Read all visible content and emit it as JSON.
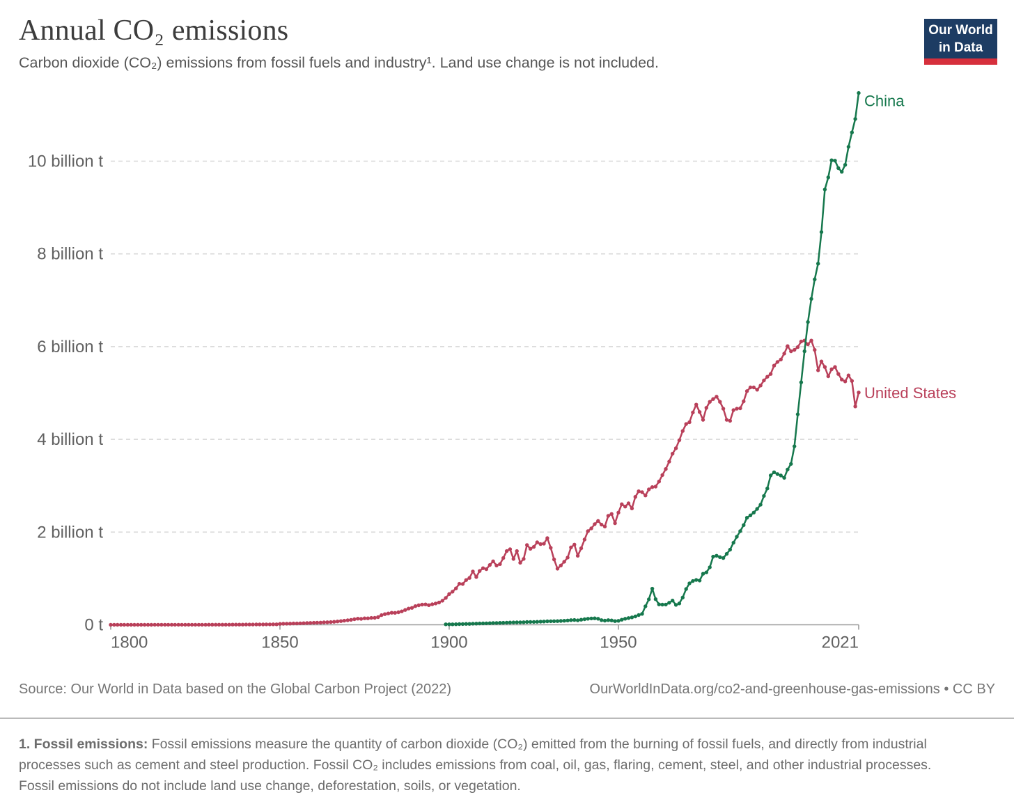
{
  "header": {
    "title": "Annual CO₂ emissions",
    "subtitle": "Carbon dioxide (CO₂) emissions from fossil fuels and industry¹. Land use change is not included.",
    "logo": {
      "line1": "Our World",
      "line2": "in Data"
    }
  },
  "chart_data": {
    "type": "line",
    "title": "Annual CO₂ emissions",
    "unit": "billion tonnes of CO₂ per year",
    "grid": true,
    "x_range": [
      1800,
      2021
    ],
    "y_range": [
      0,
      11.6
    ],
    "x_axis": {
      "ticks": [
        {
          "year": 1800,
          "label": "1800"
        },
        {
          "year": 1850,
          "label": "1850"
        },
        {
          "year": 1900,
          "label": "1900"
        },
        {
          "year": 1950,
          "label": "1950"
        },
        {
          "year": 2021,
          "label": "2021"
        }
      ]
    },
    "y_axis": {
      "ticks": [
        {
          "value": 0,
          "label": "0 t"
        },
        {
          "value": 2,
          "label": "2 billion t"
        },
        {
          "value": 4,
          "label": "4 billion t"
        },
        {
          "value": 6,
          "label": "6 billion t"
        },
        {
          "value": 8,
          "label": "8 billion t"
        },
        {
          "value": 10,
          "label": "10 billion t"
        }
      ]
    },
    "legend_position": "end-of-line-labels",
    "series": [
      {
        "name": "United States",
        "color": "#b9405a",
        "x_start": 1800,
        "x_step": 1,
        "values": [
          0.0003,
          0.0003,
          0.0003,
          0.0004,
          0.0004,
          0.0004,
          0.0005,
          0.0005,
          0.0005,
          0.0006,
          0.0006,
          0.0007,
          0.0007,
          0.0008,
          0.0008,
          0.0009,
          0.0009,
          0.001,
          0.001,
          0.0011,
          0.0012,
          0.0013,
          0.0014,
          0.0015,
          0.0016,
          0.0017,
          0.0018,
          0.002,
          0.0021,
          0.0023,
          0.0025,
          0.0027,
          0.0029,
          0.0031,
          0.0034,
          0.0037,
          0.004,
          0.0043,
          0.0046,
          0.005,
          0.0054,
          0.0059,
          0.0064,
          0.0069,
          0.0075,
          0.0081,
          0.0088,
          0.0095,
          0.0103,
          0.0112,
          0.0198,
          0.022,
          0.024,
          0.026,
          0.028,
          0.029,
          0.032,
          0.035,
          0.037,
          0.04,
          0.044,
          0.046,
          0.048,
          0.052,
          0.055,
          0.059,
          0.065,
          0.072,
          0.08,
          0.088,
          0.098,
          0.106,
          0.12,
          0.132,
          0.128,
          0.139,
          0.14,
          0.148,
          0.15,
          0.165,
          0.209,
          0.23,
          0.245,
          0.26,
          0.258,
          0.271,
          0.29,
          0.32,
          0.35,
          0.365,
          0.403,
          0.42,
          0.435,
          0.44,
          0.423,
          0.443,
          0.46,
          0.48,
          0.52,
          0.58,
          0.663,
          0.715,
          0.785,
          0.885,
          0.88,
          0.965,
          1.01,
          1.15,
          1.03,
          1.16,
          1.22,
          1.2,
          1.29,
          1.37,
          1.28,
          1.31,
          1.44,
          1.59,
          1.63,
          1.42,
          1.59,
          1.34,
          1.42,
          1.72,
          1.64,
          1.68,
          1.78,
          1.74,
          1.75,
          1.87,
          1.66,
          1.41,
          1.21,
          1.28,
          1.36,
          1.45,
          1.67,
          1.73,
          1.49,
          1.65,
          1.84,
          2.02,
          2.08,
          2.17,
          2.24,
          2.16,
          2.12,
          2.35,
          2.39,
          2.19,
          2.42,
          2.6,
          2.55,
          2.62,
          2.51,
          2.76,
          2.88,
          2.86,
          2.79,
          2.92,
          2.97,
          2.98,
          3.09,
          3.23,
          3.36,
          3.52,
          3.69,
          3.81,
          3.98,
          4.18,
          4.33,
          4.37,
          4.58,
          4.75,
          4.59,
          4.42,
          4.68,
          4.81,
          4.87,
          4.92,
          4.81,
          4.66,
          4.42,
          4.4,
          4.63,
          4.66,
          4.67,
          4.82,
          5.04,
          5.12,
          5.12,
          5.07,
          5.16,
          5.27,
          5.35,
          5.41,
          5.59,
          5.67,
          5.72,
          5.85,
          6.01,
          5.9,
          5.93,
          5.99,
          6.11,
          6.13,
          6.05,
          6.13,
          5.93,
          5.49,
          5.68,
          5.56,
          5.36,
          5.51,
          5.56,
          5.41,
          5.29,
          5.25,
          5.38,
          5.26,
          4.71,
          5.01
        ]
      },
      {
        "name": "China",
        "color": "#16784d",
        "x_start": 1899,
        "x_step": 1,
        "values": [
          0.01,
          0.01,
          0.011,
          0.012,
          0.015,
          0.017,
          0.019,
          0.02,
          0.024,
          0.026,
          0.028,
          0.03,
          0.032,
          0.034,
          0.037,
          0.039,
          0.042,
          0.044,
          0.047,
          0.049,
          0.051,
          0.052,
          0.054,
          0.056,
          0.06,
          0.062,
          0.062,
          0.064,
          0.068,
          0.071,
          0.075,
          0.077,
          0.078,
          0.08,
          0.082,
          0.087,
          0.093,
          0.1,
          0.103,
          0.096,
          0.11,
          0.12,
          0.13,
          0.136,
          0.14,
          0.13,
          0.1,
          0.09,
          0.1,
          0.095,
          0.079,
          0.085,
          0.11,
          0.13,
          0.145,
          0.16,
          0.18,
          0.21,
          0.235,
          0.4,
          0.55,
          0.78,
          0.552,
          0.44,
          0.436,
          0.437,
          0.476,
          0.523,
          0.429,
          0.461,
          0.589,
          0.772,
          0.893,
          0.944,
          0.967,
          0.955,
          1.1,
          1.13,
          1.24,
          1.47,
          1.49,
          1.46,
          1.44,
          1.53,
          1.62,
          1.77,
          1.9,
          2.02,
          2.15,
          2.31,
          2.36,
          2.42,
          2.5,
          2.59,
          2.78,
          2.94,
          3.22,
          3.29,
          3.25,
          3.22,
          3.17,
          3.35,
          3.47,
          3.85,
          4.54,
          5.23,
          5.9,
          6.53,
          7.03,
          7.45,
          7.79,
          8.47,
          9.39,
          9.65,
          10.02,
          10.01,
          9.85,
          9.77,
          9.92,
          10.31,
          10.62,
          10.91,
          11.47
        ]
      }
    ]
  },
  "footer": {
    "source": "Source: Our World in Data based on the Global Carbon Project (2022)",
    "license": "OurWorldInData.org/co2-and-greenhouse-gas-emissions • CC BY"
  },
  "footnote": {
    "lead": "1. Fossil emissions:",
    "line1_rest": " Fossil emissions measure the quantity of carbon dioxide (CO₂) emitted from the burning of fossil fuels, and directly from industrial",
    "line2": "processes such as cement and steel production. Fossil CO₂ includes emissions from coal, oil, gas, flaring, cement, steel, and other industrial processes.",
    "line3": "Fossil emissions do not include land use change, deforestation, soils, or vegetation."
  },
  "colors": {
    "title": "#3c3c3c",
    "subtitle": "#565656",
    "tick_label": "#616161",
    "grid": "#d8d8d8",
    "axis": "#9a9a9a",
    "footer_text": "#757575",
    "footnote_text": "#6c6c6c",
    "divider": "#4e4e4e",
    "logo_bg": "#1d3c63",
    "logo_bar": "#d62f3c",
    "united_states": "#b9405a",
    "china": "#16784d"
  }
}
